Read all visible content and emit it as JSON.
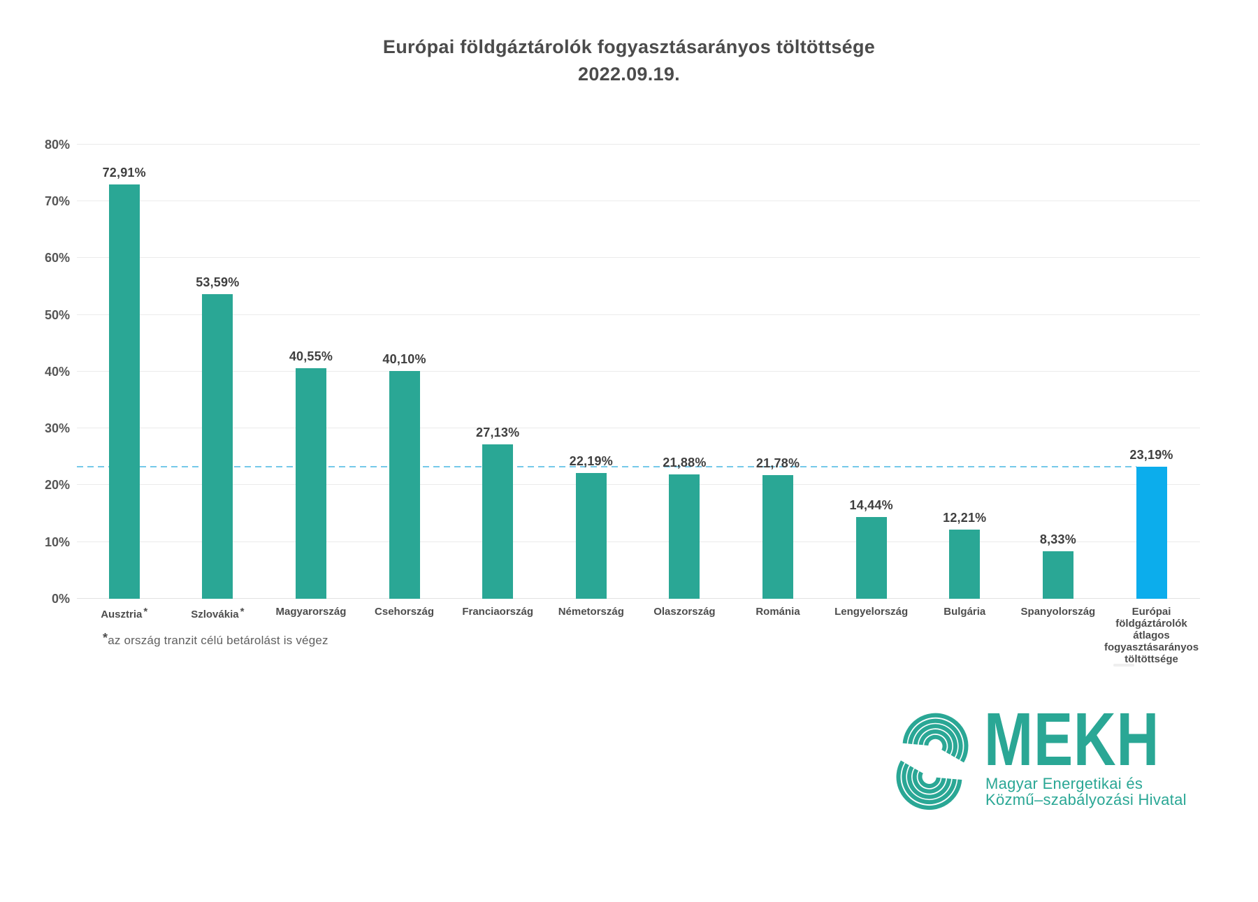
{
  "title": "Európai földgáztárolók fogyasztásarányos töltöttsége",
  "subtitle": "2022.09.19.",
  "footnote": {
    "marker": "*",
    "text": "az ország tranzit célú betárolást is végez"
  },
  "colors": {
    "bar_teal": "#2aa795",
    "bar_blue": "#0cadec",
    "average_line": "#74c9e9",
    "gridline": "#ebebeb",
    "logo_teal": "#2aa795"
  },
  "chart_data": {
    "type": "bar",
    "title": "Európai földgáztárolók fogyasztásarányos töltöttsége",
    "subtitle": "2022.09.19.",
    "categories": [
      "Ausztria",
      "Szlovákia",
      "Magyarország",
      "Csehország",
      "Franciaország",
      "Németország",
      "Olaszország",
      "Románia",
      "Lengyelország",
      "Bulgária",
      "Spanyolország",
      "Európai földgáztárolók átlagos fogyasztásarányos töltöttsége"
    ],
    "asterisk": [
      true,
      true,
      false,
      false,
      false,
      false,
      false,
      false,
      false,
      false,
      false,
      false
    ],
    "values": [
      72.91,
      53.59,
      40.55,
      40.1,
      27.13,
      22.19,
      21.88,
      21.78,
      14.44,
      12.21,
      8.33,
      23.19
    ],
    "value_labels": [
      "72,91%",
      "53,59%",
      "40,55%",
      "40,10%",
      "27,13%",
      "22,19%",
      "21,88%",
      "21,78%",
      "14,44%",
      "12,21%",
      "8,33%",
      "23,19%"
    ],
    "highlight_index": 11,
    "yticks": [
      0,
      10,
      20,
      30,
      40,
      50,
      60,
      70,
      80
    ],
    "ytick_labels": [
      "0%",
      "10%",
      "20%",
      "30%",
      "40%",
      "50%",
      "60%",
      "70%",
      "80%"
    ],
    "ylim": [
      0,
      85.5
    ],
    "grid": true,
    "legend": false,
    "average_line": {
      "value": 23.19,
      "style": "dashed"
    }
  },
  "logo": {
    "acronym": "MEKH",
    "tagline_lines": [
      "Magyar Energetikai és",
      "Közmű–szabályozási Hivatal"
    ]
  }
}
